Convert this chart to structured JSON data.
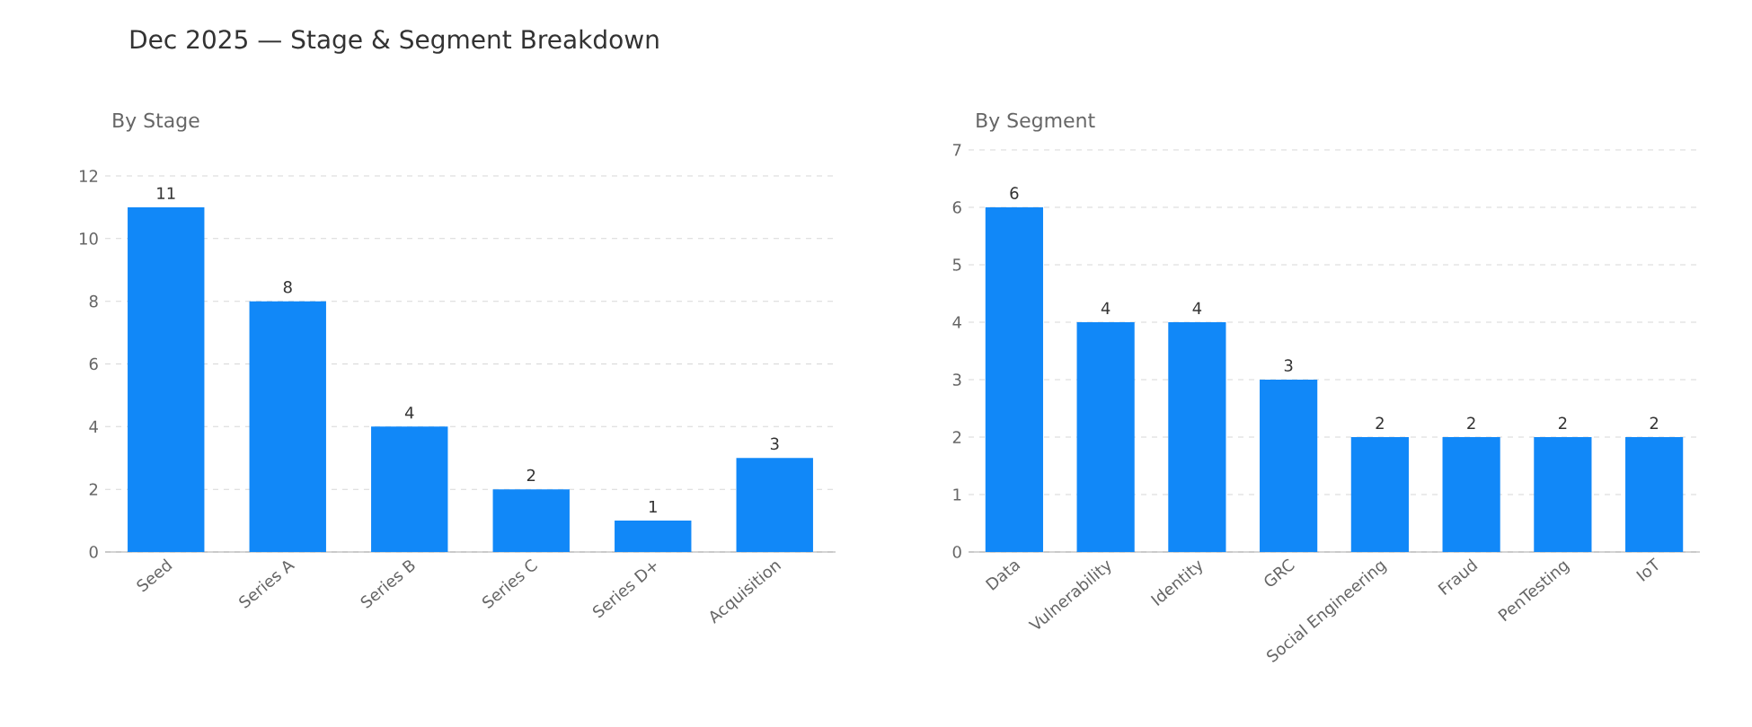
{
  "chart_data": [
    {
      "type": "bar",
      "title": "Dec 2025 — Stage & Segment Breakdown",
      "subtitle": "By Stage",
      "categories": [
        "Seed",
        "Series A",
        "Series B",
        "Series C",
        "Series D+",
        "Acquisition"
      ],
      "values": [
        11,
        8,
        4,
        2,
        1,
        3
      ],
      "color": "#1188f8",
      "ylim": [
        0,
        12
      ],
      "yticks": [
        0,
        2,
        4,
        6,
        8,
        10,
        12
      ],
      "grid": "y",
      "data_labels": true
    },
    {
      "type": "bar",
      "subtitle": "By Segment",
      "categories": [
        "Data",
        "Vulnerability",
        "Identity",
        "GRC",
        "Social Engineering",
        "Fraud",
        "PenTesting",
        "IoT"
      ],
      "values": [
        6,
        4,
        4,
        3,
        2,
        2,
        2,
        2
      ],
      "color": "#1188f8",
      "ylim": [
        0,
        7
      ],
      "yticks": [
        0,
        1,
        2,
        3,
        4,
        5,
        6,
        7
      ],
      "grid": "y",
      "data_labels": true
    }
  ]
}
